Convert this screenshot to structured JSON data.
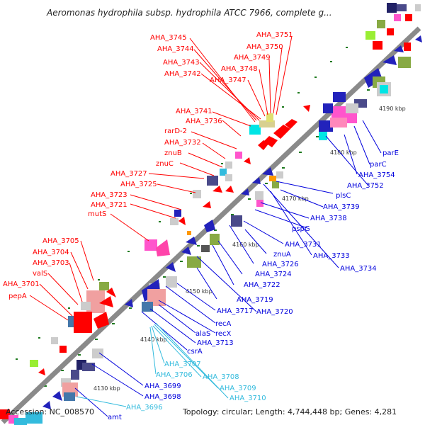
{
  "title": "Aeromonas hydrophila subsp. hydrophila ATCC 7966, complete g...",
  "footer": {
    "accession": "Accession: NC_008570",
    "summary": "Topology: circular; Length: 4,744,448 bp; Genes: 4,281"
  },
  "colors": {
    "red": "#ff0000",
    "blue": "#0000dd",
    "cyan": "#33bbdd",
    "backbone": "#999999",
    "tick": "#1e7a1e"
  },
  "scale_labels": [
    "4130 kbp",
    "4140 kbp",
    "4150 kbp",
    "4160 kbp",
    "4170 kbp",
    "4180 kbp",
    "4190 kbp"
  ],
  "labels_red": [
    "AHA_3745",
    "AHA_3744",
    "AHA_3743",
    "AHA_3742",
    "AHA_3751",
    "AHA_3750",
    "AHA_3749",
    "AHA_3748",
    "AHA_3747",
    "AHA_3741",
    "AHA_3736",
    "rarD-2",
    "AHA_3732",
    "znuB",
    "znuC",
    "AHA_3727",
    "AHA_3725",
    "AHA_3723",
    "AHA_3721",
    "mutS",
    "AHA_3705",
    "AHA_3704",
    "AHA_3703",
    "valS",
    "AHA_3701",
    "pepA"
  ],
  "labels_blue": [
    "parE",
    "parC",
    "AHA_3754",
    "AHA_3752",
    "plsC",
    "AHA_3739",
    "AHA_3738",
    "pspG",
    "AHA_3731",
    "AHA_3733",
    "AHA_3734",
    "znuA",
    "AHA_3726",
    "AHA_3724",
    "AHA_3722",
    "AHA_3719",
    "AHA_3717",
    "AHA_3720",
    "recA",
    "recX",
    "alaS",
    "AHA_3713",
    "csrA",
    "AHA_3699",
    "AHA_3698",
    "amt"
  ],
  "labels_cyan": [
    "AHA_3707",
    "AHA_3706",
    "AHA_3708",
    "AHA_3709",
    "AHA_3710",
    "AHA_3696"
  ]
}
